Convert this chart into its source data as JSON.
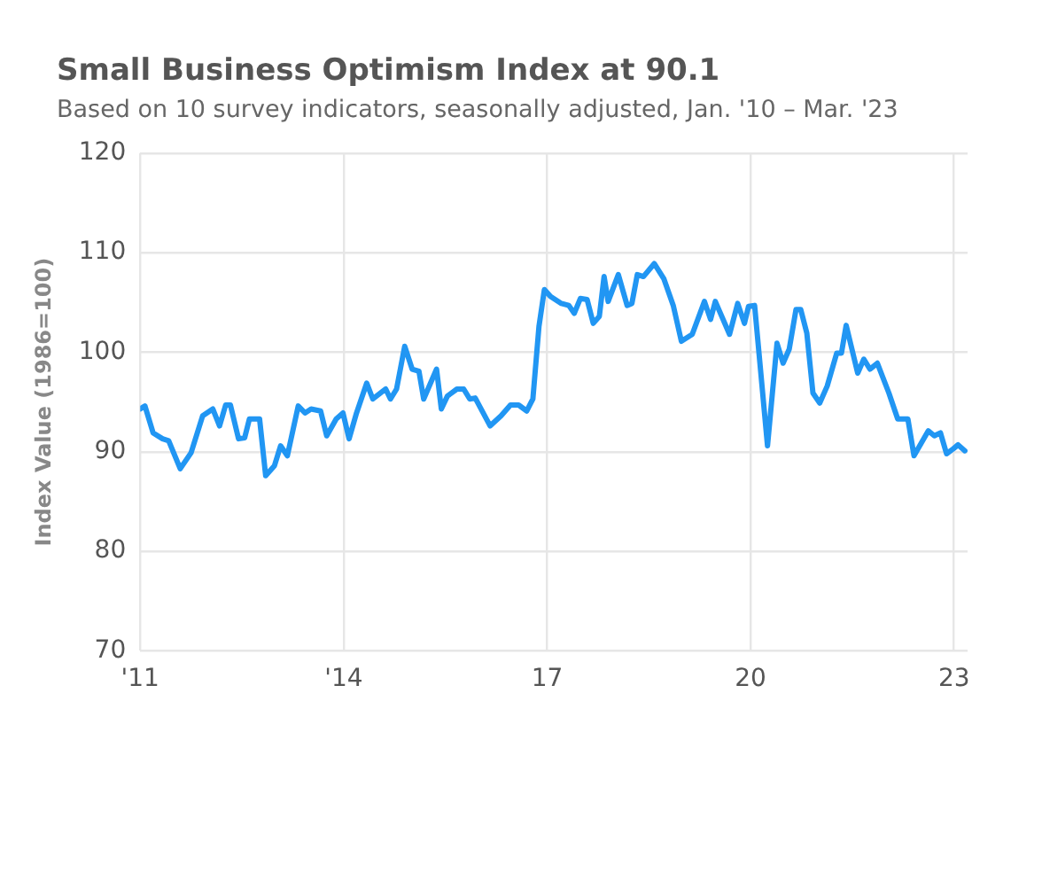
{
  "chart_data": {
    "type": "line",
    "title": "Small Business Optimism Index at 90.1",
    "subtitle": "Based on 10 survey indicators, seasonally adjusted, Jan. '10 – Mar. '23",
    "ylabel": "Index Value (1986=100)",
    "x": [
      2011.0,
      2011.07,
      2011.19,
      2011.33,
      2011.42,
      2011.59,
      2011.75,
      2011.92,
      2012.07,
      2012.17,
      2012.26,
      2012.33,
      2012.45,
      2012.54,
      2012.61,
      2012.76,
      2012.85,
      2012.98,
      2013.07,
      2013.17,
      2013.33,
      2013.43,
      2013.52,
      2013.66,
      2013.75,
      2013.89,
      2013.99,
      2014.08,
      2014.19,
      2014.34,
      2014.43,
      2014.62,
      2014.69,
      2014.78,
      2014.9,
      2015.01,
      2015.11,
      2015.18,
      2015.37,
      2015.44,
      2015.53,
      2015.67,
      2015.77,
      2015.86,
      2015.94,
      2016.16,
      2016.32,
      2016.46,
      2016.58,
      2016.7,
      2016.79,
      2016.88,
      2016.96,
      2017.05,
      2017.21,
      2017.32,
      2017.4,
      2017.49,
      2017.59,
      2017.68,
      2017.77,
      2017.84,
      2017.9,
      2018.05,
      2018.18,
      2018.25,
      2018.33,
      2018.42,
      2018.58,
      2018.72,
      2018.86,
      2018.98,
      2019.14,
      2019.32,
      2019.41,
      2019.48,
      2019.69,
      2019.81,
      2019.91,
      2019.97,
      2020.06,
      2020.25,
      2020.39,
      2020.48,
      2020.57,
      2020.67,
      2020.74,
      2020.83,
      2020.92,
      2021.02,
      2021.13,
      2021.27,
      2021.34,
      2021.41,
      2021.58,
      2021.67,
      2021.76,
      2021.87,
      2022.04,
      2022.17,
      2022.32,
      2022.41,
      2022.62,
      2022.71,
      2022.8,
      2022.89,
      2022.99,
      2023.06,
      2023.16
    ],
    "series": [
      {
        "color": "#2196f3",
        "values": [
          94.3,
          94.6,
          91.9,
          91.3,
          91.1,
          88.3,
          89.9,
          93.6,
          94.3,
          92.6,
          94.7,
          94.7,
          91.3,
          91.4,
          93.3,
          93.3,
          87.6,
          88.6,
          90.6,
          89.6,
          94.6,
          93.9,
          94.3,
          94.1,
          91.6,
          93.3,
          93.9,
          91.3,
          93.9,
          96.9,
          95.3,
          96.3,
          95.3,
          96.3,
          100.6,
          98.3,
          98.1,
          95.3,
          98.3,
          94.3,
          95.6,
          96.3,
          96.3,
          95.3,
          95.4,
          92.6,
          93.6,
          94.7,
          94.7,
          94.1,
          95.3,
          102.6,
          106.3,
          105.6,
          104.9,
          104.7,
          103.9,
          105.4,
          105.3,
          102.9,
          103.6,
          107.6,
          105.1,
          107.8,
          104.7,
          104.9,
          107.8,
          107.6,
          108.9,
          107.4,
          104.7,
          101.1,
          101.8,
          105.1,
          103.3,
          105.1,
          101.8,
          104.9,
          102.9,
          104.6,
          104.7,
          90.6,
          100.9,
          98.9,
          100.3,
          104.3,
          104.3,
          101.9,
          95.9,
          94.9,
          96.6,
          99.9,
          99.9,
          102.7,
          97.9,
          99.3,
          98.3,
          98.9,
          95.9,
          93.3,
          93.3,
          89.6,
          92.1,
          91.6,
          91.9,
          89.8,
          90.3,
          90.7,
          90.1
        ]
      }
    ],
    "xlim": [
      2011,
      2023.2
    ],
    "xticks": [
      {
        "value": 2011,
        "label": "'11"
      },
      {
        "value": 2014,
        "label": "'14"
      },
      {
        "value": 2017,
        "label": "17"
      },
      {
        "value": 2020,
        "label": "20"
      },
      {
        "value": 2023,
        "label": "23"
      }
    ],
    "ylim": [
      70,
      120
    ],
    "yticks": [
      70,
      80,
      90,
      100,
      110,
      120
    ],
    "grid": true,
    "legend": false,
    "marker": "none",
    "line_style": "solid"
  }
}
